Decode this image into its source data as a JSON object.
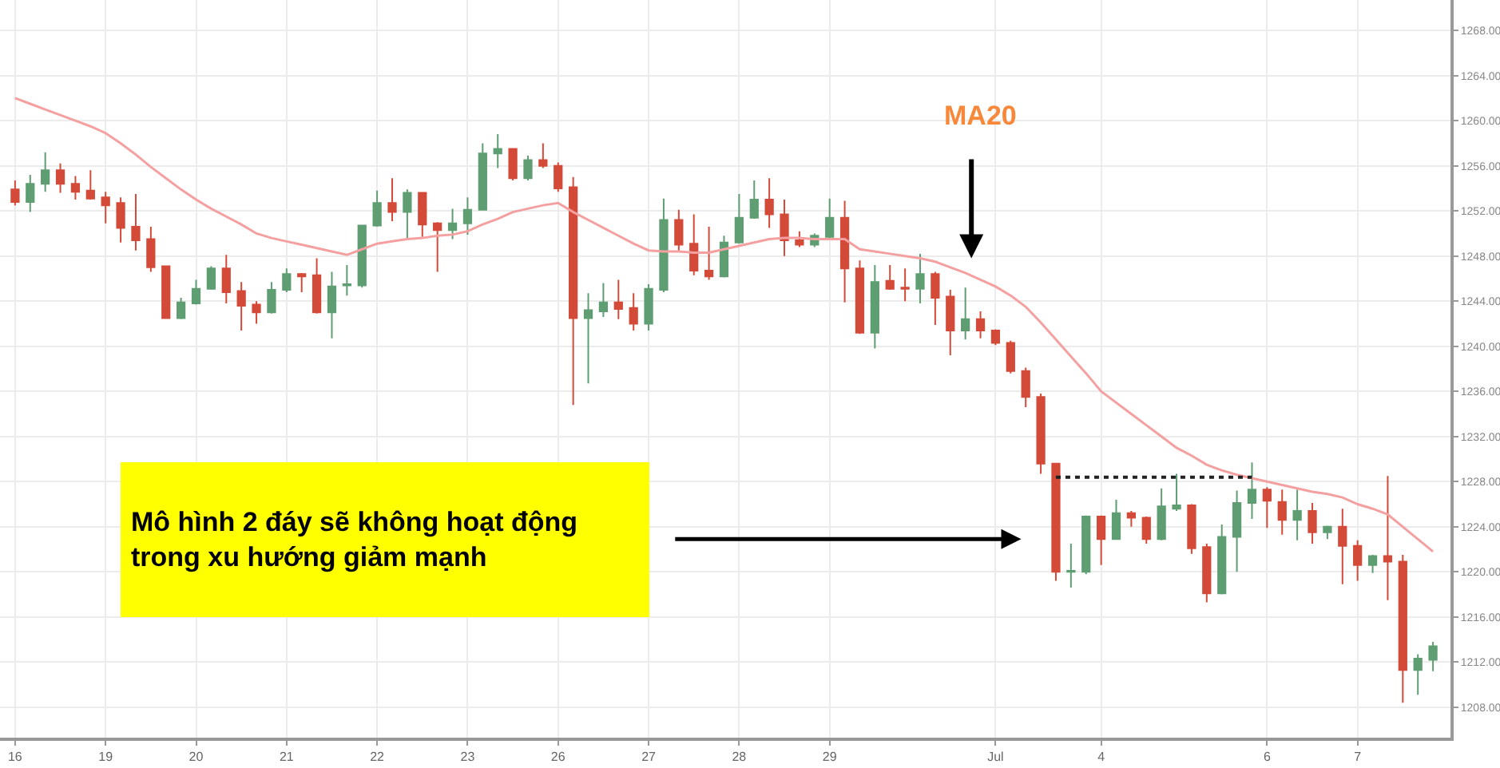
{
  "chart_data": {
    "type": "candlestick",
    "categories": [
      "16",
      null,
      null,
      null,
      null,
      null,
      "19",
      null,
      null,
      null,
      null,
      null,
      "20",
      null,
      null,
      null,
      null,
      null,
      "21",
      null,
      null,
      null,
      null,
      null,
      "22",
      null,
      null,
      null,
      null,
      null,
      "23",
      null,
      null,
      null,
      null,
      null,
      "26",
      null,
      null,
      null,
      null,
      null,
      "27",
      null,
      null,
      null,
      null,
      null,
      "28",
      null,
      null,
      null,
      null,
      null,
      "29",
      null,
      null,
      null,
      null,
      null,
      null,
      null,
      null,
      null,
      null,
      "Jul",
      null,
      null,
      null,
      null,
      null,
      null,
      "4",
      null,
      null,
      null,
      null,
      null,
      null,
      null,
      null,
      null,
      null,
      "6",
      null,
      null,
      null,
      null,
      null,
      "7",
      null,
      null,
      null,
      null,
      null
    ],
    "ohlc": [
      [
        1253.9,
        1254.7,
        1252.5,
        1252.8
      ],
      [
        1252.8,
        1255.2,
        1251.9,
        1254.4
      ],
      [
        1254.4,
        1257.2,
        1253.7,
        1255.6
      ],
      [
        1255.6,
        1256.2,
        1253.6,
        1254.4
      ],
      [
        1254.4,
        1255.1,
        1253.0,
        1253.7
      ],
      [
        1253.8,
        1255.6,
        1253.0,
        1253.1
      ],
      [
        1253.2,
        1253.7,
        1250.9,
        1252.5
      ],
      [
        1252.7,
        1253.2,
        1249.2,
        1250.5
      ],
      [
        1250.6,
        1253.5,
        1248.5,
        1249.4
      ],
      [
        1249.5,
        1250.6,
        1246.6,
        1247.0
      ],
      [
        1247.1,
        1247.1,
        1242.5,
        1242.5
      ],
      [
        1242.5,
        1244.3,
        1242.4,
        1243.9
      ],
      [
        1243.8,
        1245.9,
        1243.7,
        1245.1
      ],
      [
        1245.1,
        1247.1,
        1245.0,
        1246.9
      ],
      [
        1246.9,
        1248.1,
        1243.8,
        1244.8
      ],
      [
        1244.9,
        1245.7,
        1241.4,
        1243.6
      ],
      [
        1243.7,
        1244.0,
        1242.0,
        1243.0
      ],
      [
        1243.0,
        1245.7,
        1242.9,
        1245.0
      ],
      [
        1245.0,
        1246.9,
        1244.8,
        1246.4
      ],
      [
        1246.4,
        1246.5,
        1244.8,
        1246.2
      ],
      [
        1246.3,
        1247.8,
        1242.9,
        1243.0
      ],
      [
        1243.0,
        1246.6,
        1240.7,
        1245.3
      ],
      [
        1245.4,
        1247.2,
        1244.5,
        1245.5
      ],
      [
        1245.4,
        1250.7,
        1245.2,
        1250.7
      ],
      [
        1250.7,
        1253.8,
        1250.6,
        1252.7
      ],
      [
        1252.7,
        1254.9,
        1251.1,
        1251.9
      ],
      [
        1251.9,
        1253.9,
        1249.5,
        1253.6
      ],
      [
        1253.6,
        1253.6,
        1249.7,
        1250.8
      ],
      [
        1250.9,
        1251.0,
        1246.6,
        1250.3
      ],
      [
        1250.3,
        1252.2,
        1249.5,
        1250.9
      ],
      [
        1250.9,
        1253.2,
        1249.9,
        1252.1
      ],
      [
        1252.1,
        1258.0,
        1252.1,
        1257.1
      ],
      [
        1257.1,
        1258.8,
        1255.8,
        1257.5
      ],
      [
        1257.5,
        1257.5,
        1254.7,
        1254.9
      ],
      [
        1254.9,
        1256.9,
        1254.7,
        1256.5
      ],
      [
        1256.5,
        1258.0,
        1255.8,
        1256.0
      ],
      [
        1256.0,
        1256.3,
        1253.7,
        1254.0
      ],
      [
        1254.1,
        1255.0,
        1234.8,
        1242.5
      ],
      [
        1242.5,
        1244.7,
        1236.7,
        1243.2
      ],
      [
        1243.1,
        1245.6,
        1242.6,
        1243.9
      ],
      [
        1243.9,
        1245.9,
        1242.4,
        1243.3
      ],
      [
        1243.4,
        1244.7,
        1241.4,
        1242.0
      ],
      [
        1242.0,
        1245.5,
        1241.4,
        1245.1
      ],
      [
        1245.0,
        1253.1,
        1244.8,
        1251.2
      ],
      [
        1251.2,
        1252.1,
        1248.5,
        1249.0
      ],
      [
        1249.1,
        1251.7,
        1246.3,
        1246.7
      ],
      [
        1246.7,
        1250.6,
        1245.9,
        1246.2
      ],
      [
        1246.2,
        1249.8,
        1246.1,
        1249.2
      ],
      [
        1249.2,
        1253.5,
        1249.1,
        1251.4
      ],
      [
        1251.4,
        1254.7,
        1251.3,
        1253.0
      ],
      [
        1253.0,
        1254.9,
        1250.5,
        1251.7
      ],
      [
        1251.7,
        1253.0,
        1248.0,
        1249.4
      ],
      [
        1249.4,
        1250.2,
        1248.8,
        1249.0
      ],
      [
        1249.0,
        1250.0,
        1248.8,
        1249.8
      ],
      [
        1249.7,
        1253.1,
        1249.6,
        1251.4
      ],
      [
        1251.4,
        1252.9,
        1243.9,
        1246.9
      ],
      [
        1246.9,
        1247.6,
        1241.1,
        1241.2
      ],
      [
        1241.2,
        1247.2,
        1239.8,
        1245.7
      ],
      [
        1245.8,
        1247.2,
        1245.0,
        1245.1
      ],
      [
        1245.2,
        1246.9,
        1244.0,
        1245.1
      ],
      [
        1245.1,
        1248.2,
        1243.8,
        1246.4
      ],
      [
        1246.4,
        1246.6,
        1241.9,
        1244.3
      ],
      [
        1244.4,
        1245.0,
        1239.2,
        1241.4
      ],
      [
        1241.4,
        1245.2,
        1240.6,
        1242.4
      ],
      [
        1242.4,
        1243.1,
        1240.7,
        1241.4
      ],
      [
        1241.4,
        1241.5,
        1240.1,
        1240.3
      ],
      [
        1240.3,
        1240.5,
        1237.6,
        1237.8
      ],
      [
        1237.8,
        1238.1,
        1234.6,
        1235.5
      ],
      [
        1235.5,
        1235.8,
        1228.7,
        1229.6
      ],
      [
        1229.6,
        1229.6,
        1219.2,
        1220.0
      ],
      [
        1220.0,
        1222.5,
        1218.6,
        1220.1
      ],
      [
        1220.0,
        1225.0,
        1219.8,
        1224.9
      ],
      [
        1224.9,
        1225.0,
        1220.6,
        1222.9
      ],
      [
        1222.9,
        1226.4,
        1222.9,
        1225.2
      ],
      [
        1225.2,
        1225.4,
        1224.0,
        1224.8
      ],
      [
        1224.8,
        1224.9,
        1222.5,
        1222.9
      ],
      [
        1222.9,
        1227.4,
        1222.8,
        1225.8
      ],
      [
        1225.6,
        1228.7,
        1225.4,
        1225.9
      ],
      [
        1225.9,
        1226.0,
        1221.6,
        1222.1
      ],
      [
        1222.2,
        1222.5,
        1217.3,
        1218.1
      ],
      [
        1218.1,
        1224.2,
        1218.0,
        1223.1
      ],
      [
        1223.1,
        1227.2,
        1220.0,
        1226.1
      ],
      [
        1226.1,
        1229.7,
        1224.7,
        1227.3
      ],
      [
        1227.3,
        1227.5,
        1223.9,
        1226.3
      ],
      [
        1226.2,
        1227.3,
        1223.3,
        1224.6
      ],
      [
        1224.6,
        1227.3,
        1222.8,
        1225.4
      ],
      [
        1225.4,
        1226.1,
        1222.5,
        1223.5
      ],
      [
        1223.5,
        1224.1,
        1222.9,
        1224.0
      ],
      [
        1224.0,
        1225.6,
        1218.9,
        1222.3
      ],
      [
        1222.3,
        1222.8,
        1219.2,
        1220.6
      ],
      [
        1220.6,
        1221.5,
        1219.9,
        1221.4
      ],
      [
        1221.4,
        1228.5,
        1217.5,
        1220.9
      ],
      [
        1220.9,
        1221.5,
        1208.4,
        1211.3
      ],
      [
        1211.3,
        1212.7,
        1209.1,
        1212.3
      ],
      [
        1212.2,
        1213.8,
        1211.2,
        1213.4
      ]
    ],
    "colors": [
      "#d44a38",
      "#5e9e72",
      "#5e9e72",
      "#d44a38",
      "#d44a38",
      "#d44a38",
      "#d44a38",
      "#d44a38",
      "#d44a38",
      "#d44a38",
      "#d44a38",
      "#5e9e72",
      "#5e9e72",
      "#5e9e72",
      "#d44a38",
      "#d44a38",
      "#d44a38",
      "#5e9e72",
      "#5e9e72",
      "#d44a38",
      "#d44a38",
      "#5e9e72",
      "#5e9e72",
      "#5e9e72",
      "#5e9e72",
      "#d44a38",
      "#5e9e72",
      "#d44a38",
      "#d44a38",
      "#5e9e72",
      "#5e9e72",
      "#5e9e72",
      "#5e9e72",
      "#d44a38",
      "#5e9e72",
      "#d44a38",
      "#d44a38",
      "#d44a38",
      "#5e9e72",
      "#5e9e72",
      "#d44a38",
      "#d44a38",
      "#5e9e72",
      "#5e9e72",
      "#d44a38",
      "#d44a38",
      "#d44a38",
      "#5e9e72",
      "#5e9e72",
      "#5e9e72",
      "#d44a38",
      "#d44a38",
      "#d44a38",
      "#5e9e72",
      "#5e9e72",
      "#d44a38",
      "#d44a38",
      "#5e9e72",
      "#d44a38",
      "#d44a38",
      "#5e9e72",
      "#d44a38",
      "#d44a38",
      "#5e9e72",
      "#d44a38",
      "#d44a38",
      "#d44a38",
      "#d44a38",
      "#d44a38",
      "#d44a38",
      "#5e9e72",
      "#5e9e72",
      "#d44a38",
      "#5e9e72",
      "#d44a38",
      "#d44a38",
      "#5e9e72",
      "#5e9e72",
      "#d44a38",
      "#d44a38",
      "#5e9e72",
      "#5e9e72",
      "#5e9e72",
      "#d44a38",
      "#d44a38",
      "#5e9e72",
      "#d44a38",
      "#5e9e72",
      "#d44a38",
      "#d44a38",
      "#5e9e72",
      "#d44a38",
      "#d44a38",
      "#5e9e72",
      "#5e9e72"
    ],
    "series": [
      {
        "type": "line",
        "color": "#f5a0a0",
        "line_style": "solid",
        "values": [
          1262.0,
          1261.5,
          1261.0,
          1260.5,
          1260.0,
          1259.5,
          1258.9,
          1258.0,
          1257.0,
          1255.9,
          1254.9,
          1253.9,
          1253.0,
          1252.2,
          1251.5,
          1250.8,
          1250.0,
          1249.6,
          1249.3,
          1249.0,
          1248.7,
          1248.4,
          1248.1,
          1248.6,
          1249.1,
          1249.3,
          1249.5,
          1249.6,
          1249.8,
          1249.9,
          1250.2,
          1250.8,
          1251.3,
          1251.9,
          1252.2,
          1252.5,
          1252.7,
          1251.9,
          1251.2,
          1250.5,
          1249.8,
          1249.1,
          1248.5,
          1248.4,
          1248.4,
          1248.3,
          1248.3,
          1248.6,
          1248.9,
          1249.2,
          1249.5,
          1249.6,
          1249.6,
          1249.5,
          1249.5,
          1249.5,
          1248.6,
          1248.4,
          1248.2,
          1248.0,
          1247.8,
          1247.5,
          1247.0,
          1246.5,
          1245.9,
          1245.3,
          1244.5,
          1243.5,
          1242.1,
          1240.6,
          1239.1,
          1237.6,
          1236.0,
          1235.0,
          1234.0,
          1233.0,
          1232.0,
          1231.0,
          1230.3,
          1229.5,
          1229.0,
          1228.6,
          1228.3,
          1228.0,
          1227.7,
          1227.4,
          1227.1,
          1226.9,
          1226.6,
          1226.0,
          1225.6,
          1225.1,
          1224.0,
          1222.9,
          1221.8
        ]
      },
      {
        "type": "line",
        "color": "#222222",
        "line_style": "dotted",
        "values": [
          null,
          null,
          null,
          null,
          null,
          null,
          null,
          null,
          null,
          null,
          null,
          null,
          null,
          null,
          null,
          null,
          null,
          null,
          null,
          null,
          null,
          null,
          null,
          null,
          null,
          null,
          null,
          null,
          null,
          null,
          null,
          null,
          null,
          null,
          null,
          null,
          null,
          null,
          null,
          null,
          null,
          null,
          null,
          null,
          null,
          null,
          null,
          null,
          null,
          null,
          null,
          null,
          null,
          null,
          null,
          null,
          null,
          null,
          null,
          null,
          null,
          null,
          null,
          null,
          null,
          null,
          null,
          null,
          null,
          1228.4,
          1228.4,
          1228.4,
          1228.4,
          1228.4,
          1228.4,
          1228.4,
          1228.4,
          1228.4,
          1228.4,
          1228.4,
          1228.4,
          1228.4,
          1228.4,
          null,
          null,
          null,
          null,
          null,
          null,
          null,
          null,
          null,
          null,
          null,
          null
        ]
      }
    ],
    "annotations": [
      "MA20",
      "Mô hình 2 đáy sẽ không hoạt động\ntrong xu hướng giảm mạnh"
    ],
    "ylim": [
      1205.3,
      1270.7
    ],
    "yticks": [
      {
        "value": 1208,
        "label": "1208.00"
      },
      {
        "value": 1212,
        "label": "1212.00"
      },
      {
        "value": 1216,
        "label": "1216.00"
      },
      {
        "value": 1220,
        "label": "1220.00"
      },
      {
        "value": 1224,
        "label": "1224.00"
      },
      {
        "value": 1228,
        "label": "1228.00"
      },
      {
        "value": 1232,
        "label": "1232.00"
      },
      {
        "value": 1236,
        "label": "1236.00"
      },
      {
        "value": 1240,
        "label": "1240.00"
      },
      {
        "value": 1244,
        "label": "1244.00"
      },
      {
        "value": 1248,
        "label": "1248.00"
      },
      {
        "value": 1252,
        "label": "1252.00"
      },
      {
        "value": 1256,
        "label": "1256.00"
      },
      {
        "value": 1260,
        "label": "1260.00"
      },
      {
        "value": 1264,
        "label": "1264.00"
      },
      {
        "value": 1268,
        "label": "1268.00"
      }
    ],
    "grid": true
  }
}
